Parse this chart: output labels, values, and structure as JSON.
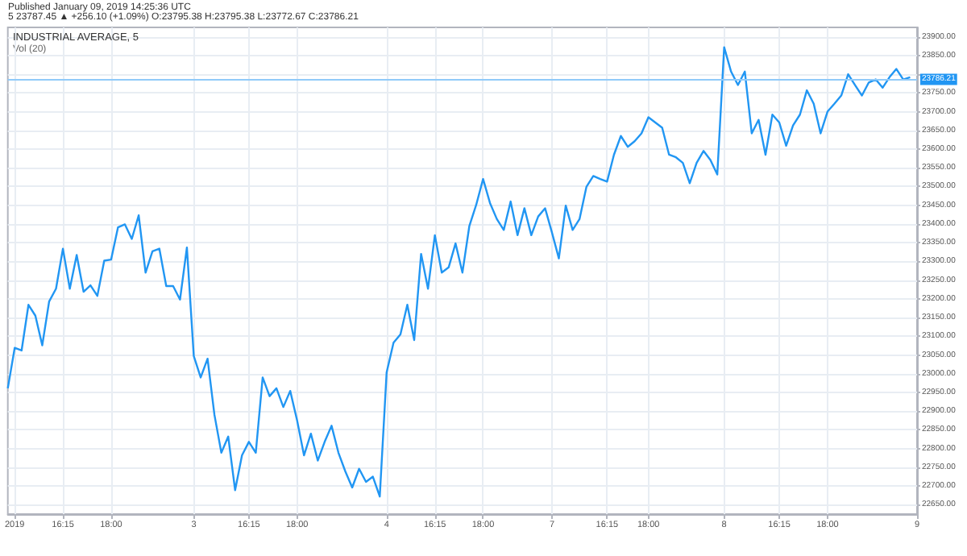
{
  "chart_data": {
    "type": "line",
    "title": "INDUSTRIAL AVERAGE, 5",
    "subtitle": "5 23787.45 ▲ +256.10 (+1.09%) O:23795.38 H:23795.38 L:23772.67 C:23786.21",
    "annotations": [
      "Published January 09, 2019 14:25:36 UTC",
      "Vol (20)"
    ],
    "categories": [
      null,
      "2019",
      null,
      null,
      null,
      null,
      null,
      null,
      "16:15",
      null,
      null,
      null,
      null,
      null,
      null,
      "18:00",
      null,
      null,
      null,
      null,
      null,
      null,
      null,
      null,
      null,
      null,
      null,
      "3",
      null,
      null,
      null,
      null,
      null,
      null,
      null,
      "16:15",
      null,
      null,
      null,
      null,
      null,
      null,
      "18:00",
      null,
      null,
      null,
      null,
      null,
      null,
      null,
      null,
      null,
      null,
      null,
      null,
      "4",
      null,
      null,
      null,
      null,
      null,
      null,
      "16:15",
      null,
      null,
      null,
      null,
      null,
      null,
      "18:00",
      null,
      null,
      null,
      null,
      null,
      null,
      null,
      null,
      null,
      "7",
      null,
      null,
      null,
      null,
      null,
      null,
      null,
      "16:15",
      null,
      null,
      null,
      null,
      null,
      "18:00",
      null,
      null,
      null,
      null,
      null,
      null,
      null,
      null,
      null,
      null,
      "8",
      null,
      null,
      null,
      null,
      null,
      null,
      null,
      "16:15",
      null,
      null,
      null,
      null,
      null,
      null,
      "18:00",
      null,
      null,
      null,
      null,
      null,
      null,
      null,
      null,
      null,
      null,
      null,
      null,
      "9"
    ],
    "series": [
      {
        "color": "#2196f3",
        "values": [
          22961,
          23069,
          23062,
          23184,
          23155,
          23076,
          23193,
          23227,
          23334,
          23227,
          23317,
          23219,
          23236,
          23208,
          23302,
          23305,
          23391,
          23399,
          23360,
          23423,
          23270,
          23327,
          23334,
          23234,
          23234,
          23198,
          23337,
          23047,
          22990,
          23040,
          22890,
          22789,
          22832,
          22689,
          22782,
          22818,
          22789,
          22990,
          22940,
          22961,
          22911,
          22954,
          22875,
          22782,
          22840,
          22768,
          22818,
          22861,
          22789,
          22739,
          22696,
          22746,
          22711,
          22725,
          22672,
          23004,
          23083,
          23105,
          23184,
          23090,
          23320,
          23227,
          23370,
          23270,
          23284,
          23348,
          23270,
          23394,
          23451,
          23520,
          23456,
          23413,
          23384,
          23460,
          23370,
          23442,
          23370,
          23420,
          23442,
          23377,
          23308,
          23449,
          23384,
          23413,
          23499,
          23528,
          23520,
          23513,
          23585,
          23635,
          23606,
          23621,
          23642,
          23685,
          23671,
          23657,
          23585,
          23578,
          23563,
          23509,
          23563,
          23595,
          23571,
          23532,
          23872,
          23807,
          23771,
          23807,
          23642,
          23678,
          23585,
          23692,
          23671,
          23609,
          23663,
          23692,
          23757,
          23721,
          23642,
          23700,
          23721,
          23743,
          23800,
          23771,
          23743,
          23778,
          23786,
          23764,
          23792,
          23814,
          23786,
          23792,
          null
        ]
      }
    ],
    "ylim": [
      22625,
      23925
    ],
    "yticks": [
      {
        "value": 22650,
        "label": "22650.00"
      },
      {
        "value": 22700,
        "label": "22700.00"
      },
      {
        "value": 22750,
        "label": "22750.00"
      },
      {
        "value": 22800,
        "label": "22800.00"
      },
      {
        "value": 22850,
        "label": "22850.00"
      },
      {
        "value": 22900,
        "label": "22900.00"
      },
      {
        "value": 22950,
        "label": "22950.00"
      },
      {
        "value": 23000,
        "label": "23000.00"
      },
      {
        "value": 23050,
        "label": "23050.00"
      },
      {
        "value": 23100,
        "label": "23100.00"
      },
      {
        "value": 23150,
        "label": "23150.00"
      },
      {
        "value": 23200,
        "label": "23200.00"
      },
      {
        "value": 23250,
        "label": "23250.00"
      },
      {
        "value": 23300,
        "label": "23300.00"
      },
      {
        "value": 23350,
        "label": "23350.00"
      },
      {
        "value": 23400,
        "label": "23400.00"
      },
      {
        "value": 23450,
        "label": "23450.00"
      },
      {
        "value": 23500,
        "label": "23500.00"
      },
      {
        "value": 23550,
        "label": "23550.00"
      },
      {
        "value": 23600,
        "label": "23600.00"
      },
      {
        "value": 23650,
        "label": "23650.00"
      },
      {
        "value": 23700,
        "label": "23700.00"
      },
      {
        "value": 23750,
        "label": "23750.00"
      },
      {
        "value": 23800,
        "label": null
      },
      {
        "value": 23850,
        "label": "23850.00"
      },
      {
        "value": 23900,
        "label": "23900.00"
      }
    ],
    "ref_lines": [
      {
        "axis": "y",
        "value": 23786.21,
        "label": "23786.21",
        "color": "#90caf9"
      }
    ],
    "grid": true,
    "marker": "none",
    "line_style": "solid"
  }
}
